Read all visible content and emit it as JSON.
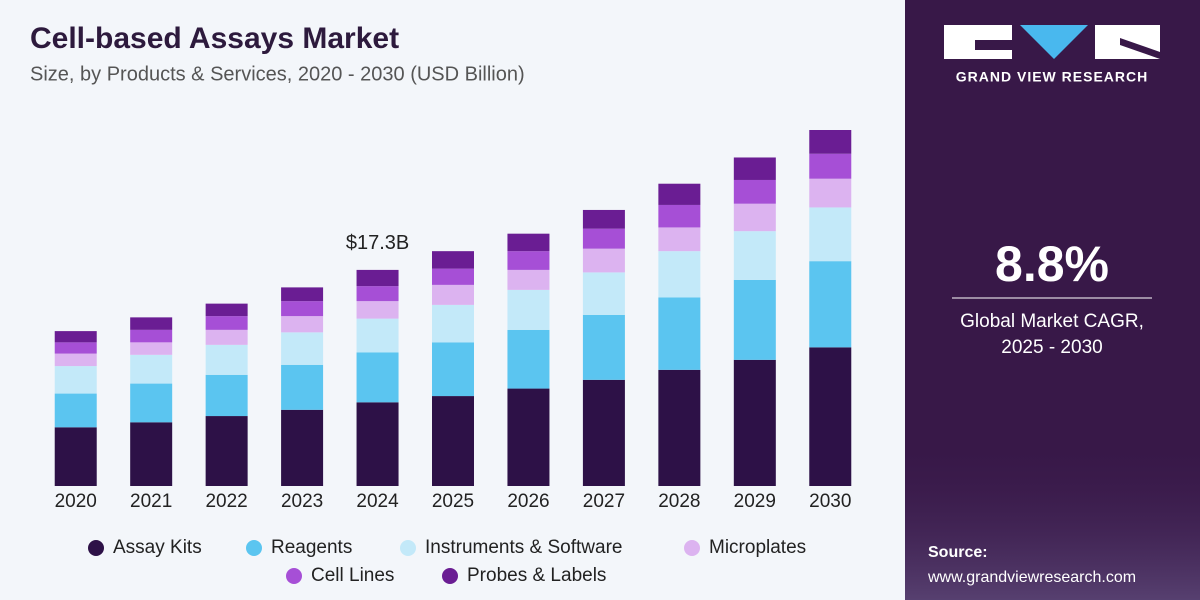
{
  "chart_data": {
    "type": "stacked-bar",
    "title": "Cell-based Assays Market",
    "subtitle": "Size, by Products & Services, 2020 - 2030 (USD Billion)",
    "categories": [
      "2020",
      "2021",
      "2022",
      "2023",
      "2024",
      "2025",
      "2026",
      "2027",
      "2028",
      "2029",
      "2030"
    ],
    "series": [
      {
        "name": "Assay Kits",
        "color": "#2d1147",
        "values": [
          4.7,
          5.1,
          5.6,
          6.1,
          6.7,
          7.2,
          7.8,
          8.5,
          9.3,
          10.1,
          11.1
        ]
      },
      {
        "name": "Reagents",
        "color": "#5bc5f0",
        "values": [
          2.7,
          3.1,
          3.3,
          3.6,
          4.0,
          4.3,
          4.7,
          5.2,
          5.8,
          6.4,
          6.9
        ]
      },
      {
        "name": "Instruments & Software",
        "color": "#c3e9f9",
        "values": [
          2.2,
          2.3,
          2.4,
          2.6,
          2.7,
          3.0,
          3.2,
          3.4,
          3.7,
          3.9,
          4.3
        ]
      },
      {
        "name": "Microplates",
        "color": "#dcb3f0",
        "values": [
          1.0,
          1.0,
          1.2,
          1.3,
          1.4,
          1.6,
          1.6,
          1.9,
          1.9,
          2.2,
          2.3
        ]
      },
      {
        "name": "Cell Lines",
        "color": "#a64fd6",
        "values": [
          0.9,
          1.0,
          1.1,
          1.2,
          1.2,
          1.3,
          1.5,
          1.6,
          1.8,
          1.9,
          2.0
        ]
      },
      {
        "name": "Probes & Labels",
        "color": "#6a1d93",
        "values": [
          0.9,
          1.0,
          1.0,
          1.1,
          1.3,
          1.4,
          1.4,
          1.5,
          1.7,
          1.8,
          1.9
        ]
      }
    ],
    "annotations": [
      {
        "text": "$17.3B",
        "value": 17.3,
        "category": "2024"
      }
    ]
  },
  "sidebar": {
    "brand": "GRAND VIEW RESEARCH",
    "cagr": "8.8%",
    "cagr_label": [
      "Global Market CAGR,",
      "2025 - 2030"
    ],
    "source_label": "Source:",
    "source_url": "www.grandviewresearch.com"
  }
}
